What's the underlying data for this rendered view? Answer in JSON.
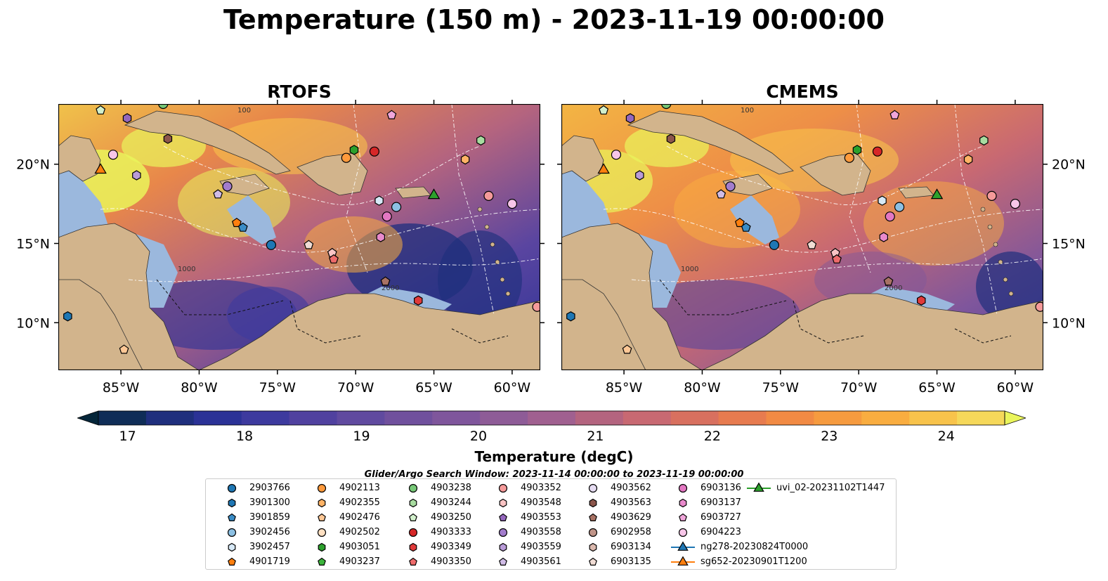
{
  "title": "Temperature (150 m) - 2023-11-19 00:00:00",
  "panels": [
    {
      "title": "RTOFS",
      "variant": "rtofs"
    },
    {
      "title": "CMEMS",
      "variant": "cmems"
    }
  ],
  "axes": {
    "lon_ticks": [
      "85°W",
      "80°W",
      "75°W",
      "70°W",
      "65°W",
      "60°W"
    ],
    "lon_values": [
      -85,
      -80,
      -75,
      -70,
      -65,
      -60
    ],
    "lat_ticks": [
      "20°N",
      "15°N",
      "10°N"
    ],
    "lat_values": [
      20,
      15,
      10
    ],
    "lon_range": [
      -89,
      -58.2
    ],
    "lat_range": [
      7.0,
      23.8
    ]
  },
  "contour_labels": [
    "1000",
    "2000",
    "100"
  ],
  "colorbar": {
    "label": "Temperature (degC)",
    "ticks": [
      "17",
      "18",
      "19",
      "20",
      "21",
      "22",
      "23",
      "24"
    ],
    "tick_values": [
      17,
      18,
      19,
      20,
      21,
      22,
      23,
      24
    ],
    "range": [
      16.75,
      24.5
    ],
    "extend": "both",
    "colors": [
      "#05263a",
      "#0f2d57",
      "#1f2f7d",
      "#2b3296",
      "#3d3a9e",
      "#50419f",
      "#604a9f",
      "#70509d",
      "#7f569c",
      "#8e5c97",
      "#a06090",
      "#b4647f",
      "#c86972",
      "#d8705f",
      "#e77b4f",
      "#f18a44",
      "#f69b3f",
      "#f9ad40",
      "#f8c34b",
      "#f5d85a",
      "#eaf55b"
    ]
  },
  "search_window": "Glider/Argo Search Window: 2023-11-14 00:00:00 to 2023-11-19 00:00:00",
  "legend": {
    "items": [
      {
        "label": "2903766",
        "marker": "circle",
        "color": "#1f77b4"
      },
      {
        "label": "3901300",
        "marker": "hexagon",
        "color": "#1f77b4"
      },
      {
        "label": "3901859",
        "marker": "pentagon",
        "color": "#3a8cc6"
      },
      {
        "label": "3902456",
        "marker": "circle",
        "color": "#8cc0e3"
      },
      {
        "label": "3902457",
        "marker": "hexagon",
        "color": "#d7e9f7"
      },
      {
        "label": "4901719",
        "marker": "pentagon",
        "color": "#ff7f0e"
      },
      {
        "label": "4902113",
        "marker": "circle",
        "color": "#ff9a3c"
      },
      {
        "label": "4902355",
        "marker": "hexagon",
        "color": "#ffb366"
      },
      {
        "label": "4902476",
        "marker": "pentagon",
        "color": "#ffc896"
      },
      {
        "label": "4902502",
        "marker": "circle",
        "color": "#ffe0c2"
      },
      {
        "label": "4903051",
        "marker": "hexagon",
        "color": "#2ca02c"
      },
      {
        "label": "4903237",
        "marker": "pentagon",
        "color": "#3cb43c"
      },
      {
        "label": "4903238",
        "marker": "circle",
        "color": "#77c877"
      },
      {
        "label": "4903244",
        "marker": "hexagon",
        "color": "#a8dca0"
      },
      {
        "label": "4903250",
        "marker": "pentagon",
        "color": "#d2f0cc"
      },
      {
        "label": "4903333",
        "marker": "circle",
        "color": "#d62728"
      },
      {
        "label": "4903349",
        "marker": "hexagon",
        "color": "#e03a3a"
      },
      {
        "label": "4903350",
        "marker": "pentagon",
        "color": "#ee6b6b"
      },
      {
        "label": "4903352",
        "marker": "circle",
        "color": "#f59a9a"
      },
      {
        "label": "4903548",
        "marker": "hexagon",
        "color": "#fac4c4"
      },
      {
        "label": "4903553",
        "marker": "pentagon",
        "color": "#9467bd"
      },
      {
        "label": "4903558",
        "marker": "circle",
        "color": "#a27ccc"
      },
      {
        "label": "4903559",
        "marker": "hexagon",
        "color": "#b99bd8"
      },
      {
        "label": "4903561",
        "marker": "pentagon",
        "color": "#d0bce6"
      },
      {
        "label": "4903562",
        "marker": "circle",
        "color": "#e6dcf2"
      },
      {
        "label": "4903563",
        "marker": "hexagon",
        "color": "#8c564b"
      },
      {
        "label": "4903629",
        "marker": "pentagon",
        "color": "#a87264"
      },
      {
        "label": "6902958",
        "marker": "circle",
        "color": "#c09488"
      },
      {
        "label": "6903134",
        "marker": "hexagon",
        "color": "#dbb9ae"
      },
      {
        "label": "6903135",
        "marker": "pentagon",
        "color": "#f0dcd4"
      },
      {
        "label": "6903136",
        "marker": "circle",
        "color": "#e377c2"
      },
      {
        "label": "6903137",
        "marker": "hexagon",
        "color": "#e98acc"
      },
      {
        "label": "6903727",
        "marker": "pentagon",
        "color": "#f0a6da"
      },
      {
        "label": "6904223",
        "marker": "circle",
        "color": "#f7c6e8"
      },
      {
        "label": "ng278-20230824T0000",
        "marker": "triangle-line",
        "color": "#1f77b4"
      },
      {
        "label": "sg652-20230901T1200",
        "marker": "triangle-line",
        "color": "#ff7f0e"
      },
      {
        "label": "uvi_02-20231102T1447",
        "marker": "triangle-line",
        "color": "#2ca02c"
      }
    ]
  },
  "colors": {
    "land": "#d2b48c",
    "shelf": "#9bb8dd",
    "deep": "#6b4a9c"
  }
}
